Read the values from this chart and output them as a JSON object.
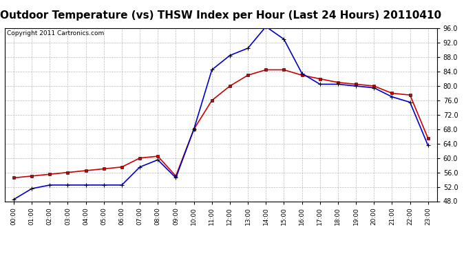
{
  "title": "Outdoor Temperature (vs) THSW Index per Hour (Last 24 Hours) 20110410",
  "copyright": "Copyright 2011 Cartronics.com",
  "hours": [
    "00:00",
    "01:00",
    "02:00",
    "03:00",
    "04:00",
    "05:00",
    "06:00",
    "07:00",
    "08:00",
    "09:00",
    "10:00",
    "11:00",
    "12:00",
    "13:00",
    "14:00",
    "15:00",
    "16:00",
    "17:00",
    "18:00",
    "19:00",
    "20:00",
    "21:00",
    "22:00",
    "23:00"
  ],
  "temp_red": [
    54.5,
    55.0,
    55.5,
    56.0,
    56.5,
    57.0,
    57.5,
    60.0,
    60.5,
    55.0,
    68.0,
    76.0,
    80.0,
    83.0,
    84.5,
    84.5,
    83.0,
    82.0,
    81.0,
    80.5,
    80.0,
    78.0,
    77.5,
    65.5
  ],
  "thsw_blue": [
    48.5,
    51.5,
    52.5,
    52.5,
    52.5,
    52.5,
    52.5,
    57.5,
    59.5,
    54.5,
    68.0,
    84.5,
    88.5,
    90.5,
    96.5,
    93.0,
    83.5,
    80.5,
    80.5,
    80.0,
    79.5,
    77.0,
    75.5,
    63.5
  ],
  "ylim_min": 48.0,
  "ylim_max": 96.0,
  "ytick_step": 4.0,
  "bg_color": "#ffffff",
  "plot_bg_color": "#ffffff",
  "grid_color": "#aaaaaa",
  "red_color": "#cc0000",
  "blue_color": "#0000cc",
  "title_fontsize": 11,
  "copyright_fontsize": 6.5
}
